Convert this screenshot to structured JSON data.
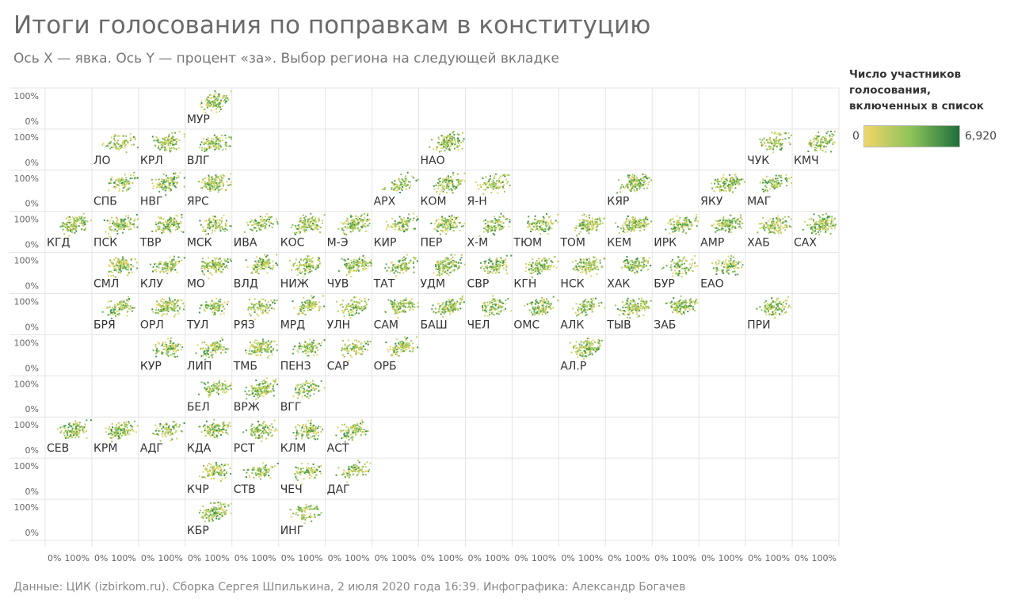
{
  "header": {
    "title": "Итоги голосования по поправкам в конституцию",
    "subtitle": "Ось X — явка. Ось Y — процент «за». Выбор региона на следующей вкладке"
  },
  "legend": {
    "title": "Число участников голосования, включенных в список",
    "min_label": "0",
    "max_label": "6,920",
    "color_low": "#efd66a",
    "color_mid": "#8cc25a",
    "color_high": "#1e6e3c"
  },
  "footer": {
    "source": "Данные: ЦИК (izbirkom.ru). Сборка Сергея Шпилькина, 2 июля 2020 года 16:39. Инфографика: Александр Богачев"
  },
  "chart_data": {
    "type": "scatter",
    "x_axis": "явка",
    "y_axis": "процент «за»",
    "xlim": [
      0,
      100
    ],
    "ylim": [
      0,
      100
    ],
    "x_tick_labels": [
      "0%",
      "100%"
    ],
    "y_tick_labels": [
      "100%",
      "0%"
    ],
    "grid_columns": 17,
    "grid_rows": 11,
    "regions": [
      {
        "label": "МУР",
        "col": 3,
        "row": 0
      },
      {
        "label": "ЛО",
        "col": 1,
        "row": 1
      },
      {
        "label": "КРЛ",
        "col": 2,
        "row": 1
      },
      {
        "label": "ВЛГ",
        "col": 3,
        "row": 1
      },
      {
        "label": "НАО",
        "col": 8,
        "row": 1
      },
      {
        "label": "ЧУК",
        "col": 15,
        "row": 1
      },
      {
        "label": "КМЧ",
        "col": 16,
        "row": 1
      },
      {
        "label": "СПБ",
        "col": 1,
        "row": 2
      },
      {
        "label": "НВГ",
        "col": 2,
        "row": 2
      },
      {
        "label": "ЯРС",
        "col": 3,
        "row": 2
      },
      {
        "label": "АРХ",
        "col": 7,
        "row": 2
      },
      {
        "label": "КОМ",
        "col": 8,
        "row": 2
      },
      {
        "label": "Я-Н",
        "col": 9,
        "row": 2
      },
      {
        "label": "КЯР",
        "col": 12,
        "row": 2
      },
      {
        "label": "ЯКУ",
        "col": 14,
        "row": 2
      },
      {
        "label": "МАГ",
        "col": 15,
        "row": 2
      },
      {
        "label": "КГД",
        "col": 0,
        "row": 3
      },
      {
        "label": "ПСК",
        "col": 1,
        "row": 3
      },
      {
        "label": "ТВР",
        "col": 2,
        "row": 3
      },
      {
        "label": "МСК",
        "col": 3,
        "row": 3
      },
      {
        "label": "ИВА",
        "col": 4,
        "row": 3
      },
      {
        "label": "КОС",
        "col": 5,
        "row": 3
      },
      {
        "label": "М-Э",
        "col": 6,
        "row": 3
      },
      {
        "label": "КИР",
        "col": 7,
        "row": 3
      },
      {
        "label": "ПЕР",
        "col": 8,
        "row": 3
      },
      {
        "label": "Х-М",
        "col": 9,
        "row": 3
      },
      {
        "label": "ТЮМ",
        "col": 10,
        "row": 3
      },
      {
        "label": "ТОМ",
        "col": 11,
        "row": 3
      },
      {
        "label": "КЕМ",
        "col": 12,
        "row": 3
      },
      {
        "label": "ИРК",
        "col": 13,
        "row": 3
      },
      {
        "label": "АМР",
        "col": 14,
        "row": 3
      },
      {
        "label": "ХАБ",
        "col": 15,
        "row": 3
      },
      {
        "label": "САХ",
        "col": 16,
        "row": 3
      },
      {
        "label": "СМЛ",
        "col": 1,
        "row": 4
      },
      {
        "label": "КЛУ",
        "col": 2,
        "row": 4
      },
      {
        "label": "МО",
        "col": 3,
        "row": 4
      },
      {
        "label": "ВЛД",
        "col": 4,
        "row": 4
      },
      {
        "label": "НИЖ",
        "col": 5,
        "row": 4
      },
      {
        "label": "ЧУВ",
        "col": 6,
        "row": 4
      },
      {
        "label": "ТАТ",
        "col": 7,
        "row": 4
      },
      {
        "label": "УДМ",
        "col": 8,
        "row": 4
      },
      {
        "label": "СВР",
        "col": 9,
        "row": 4
      },
      {
        "label": "КГН",
        "col": 10,
        "row": 4
      },
      {
        "label": "НСК",
        "col": 11,
        "row": 4
      },
      {
        "label": "ХАК",
        "col": 12,
        "row": 4
      },
      {
        "label": "БУР",
        "col": 13,
        "row": 4
      },
      {
        "label": "ЕАО",
        "col": 14,
        "row": 4
      },
      {
        "label": "БРЯ",
        "col": 1,
        "row": 5
      },
      {
        "label": "ОРЛ",
        "col": 2,
        "row": 5
      },
      {
        "label": "ТУЛ",
        "col": 3,
        "row": 5
      },
      {
        "label": "РЯЗ",
        "col": 4,
        "row": 5
      },
      {
        "label": "МРД",
        "col": 5,
        "row": 5
      },
      {
        "label": "УЛН",
        "col": 6,
        "row": 5
      },
      {
        "label": "САМ",
        "col": 7,
        "row": 5
      },
      {
        "label": "БАШ",
        "col": 8,
        "row": 5
      },
      {
        "label": "ЧЕЛ",
        "col": 9,
        "row": 5
      },
      {
        "label": "ОМС",
        "col": 10,
        "row": 5
      },
      {
        "label": "АЛК",
        "col": 11,
        "row": 5
      },
      {
        "label": "ТЫВ",
        "col": 12,
        "row": 5
      },
      {
        "label": "ЗАБ",
        "col": 13,
        "row": 5
      },
      {
        "label": "ПРИ",
        "col": 15,
        "row": 5
      },
      {
        "label": "КУР",
        "col": 2,
        "row": 6
      },
      {
        "label": "ЛИП",
        "col": 3,
        "row": 6
      },
      {
        "label": "ТМБ",
        "col": 4,
        "row": 6
      },
      {
        "label": "ПЕНЗ",
        "col": 5,
        "row": 6
      },
      {
        "label": "САР",
        "col": 6,
        "row": 6
      },
      {
        "label": "ОРБ",
        "col": 7,
        "row": 6
      },
      {
        "label": "АЛ.Р",
        "col": 11,
        "row": 6
      },
      {
        "label": "БЕЛ",
        "col": 3,
        "row": 7
      },
      {
        "label": "ВРЖ",
        "col": 4,
        "row": 7
      },
      {
        "label": "ВГГ",
        "col": 5,
        "row": 7
      },
      {
        "label": "СЕВ",
        "col": 0,
        "row": 8
      },
      {
        "label": "КРМ",
        "col": 1,
        "row": 8
      },
      {
        "label": "АДГ",
        "col": 2,
        "row": 8
      },
      {
        "label": "КДА",
        "col": 3,
        "row": 8
      },
      {
        "label": "РСТ",
        "col": 4,
        "row": 8
      },
      {
        "label": "КЛМ",
        "col": 5,
        "row": 8
      },
      {
        "label": "АСТ",
        "col": 6,
        "row": 8
      },
      {
        "label": "КЧР",
        "col": 3,
        "row": 9
      },
      {
        "label": "СТВ",
        "col": 4,
        "row": 9
      },
      {
        "label": "ЧЕЧ",
        "col": 5,
        "row": 9
      },
      {
        "label": "ДАГ",
        "col": 6,
        "row": 9
      },
      {
        "label": "КБР",
        "col": 3,
        "row": 10
      },
      {
        "label": "ИНГ",
        "col": 5,
        "row": 10
      }
    ]
  }
}
